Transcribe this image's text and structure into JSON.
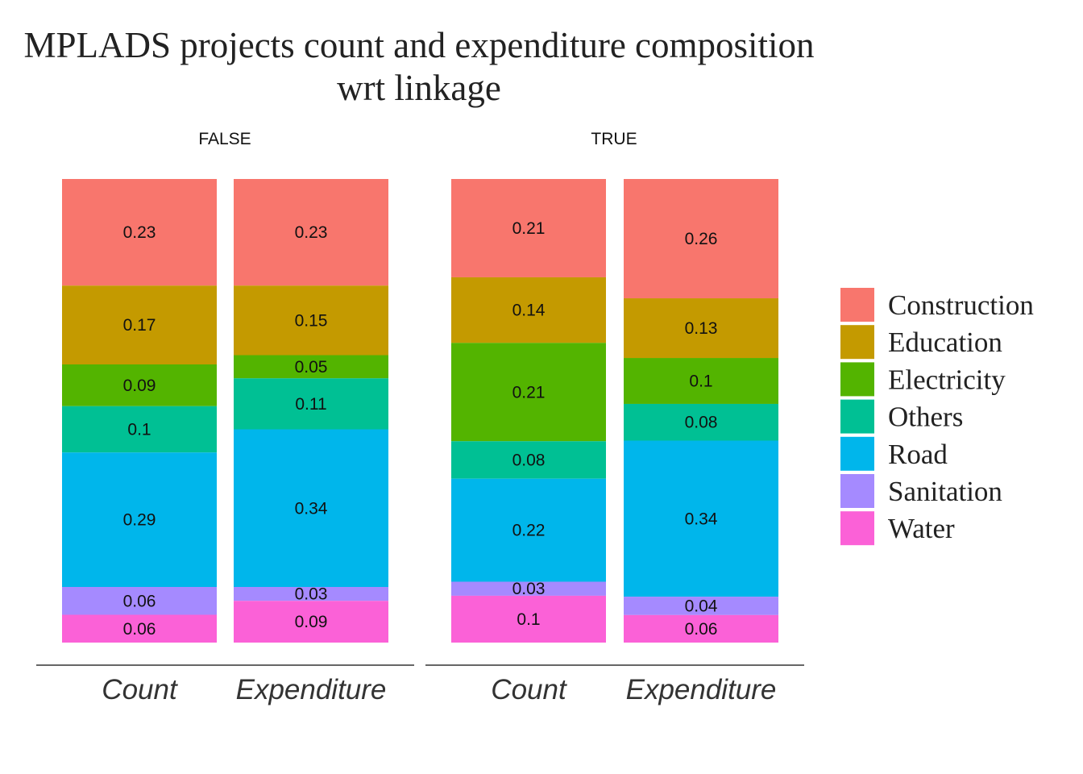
{
  "chart_data": {
    "type": "bar",
    "stacked": true,
    "title_lines": [
      "MPLADS projects count and expenditure composition",
      "wrt linkage"
    ],
    "categories": [
      "Count",
      "Expenditure"
    ],
    "segment_order": [
      "Construction",
      "Education",
      "Electricity",
      "Others",
      "Road",
      "Sanitation",
      "Water"
    ],
    "colors": {
      "Construction": "#F8766D",
      "Education": "#C49A00",
      "Electricity": "#53B400",
      "Others": "#00C094",
      "Road": "#00B6EB",
      "Sanitation": "#A58AFF",
      "Water": "#FB61D7"
    },
    "legend": {
      "position": "right",
      "items": [
        "Construction",
        "Education",
        "Electricity",
        "Others",
        "Road",
        "Sanitation",
        "Water"
      ]
    },
    "ylim": [
      0,
      1
    ],
    "grid": false,
    "panels": [
      {
        "label": "FALSE",
        "bars": [
          {
            "category": "Count",
            "values": [
              0.23,
              0.17,
              0.09,
              0.1,
              0.29,
              0.06,
              0.06
            ]
          },
          {
            "category": "Expenditure",
            "values": [
              0.23,
              0.15,
              0.05,
              0.11,
              0.34,
              0.03,
              0.09
            ]
          }
        ]
      },
      {
        "label": "TRUE",
        "bars": [
          {
            "category": "Count",
            "values": [
              0.21,
              0.14,
              0.21,
              0.08,
              0.22,
              0.03,
              0.1
            ]
          },
          {
            "category": "Expenditure",
            "values": [
              0.26,
              0.13,
              0.1,
              0.08,
              0.34,
              0.04,
              0.06
            ]
          }
        ]
      }
    ]
  }
}
